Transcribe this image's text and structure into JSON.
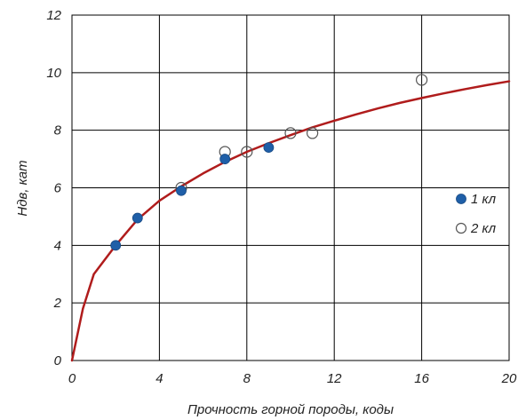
{
  "chart_data": {
    "type": "scatter",
    "title": "",
    "xlabel": "Прочность горной породы, коды",
    "ylabel": "Ндв, кат",
    "xlim": [
      0,
      20
    ],
    "ylim": [
      0,
      12
    ],
    "xticks": [
      0,
      4,
      8,
      12,
      16,
      20
    ],
    "yticks": [
      0,
      2,
      4,
      6,
      8,
      10,
      12
    ],
    "xtick_labels": [
      "0",
      "4",
      "8",
      "12",
      "16",
      "20"
    ],
    "ytick_labels": [
      "0",
      "2",
      "4",
      "6",
      "8",
      "10",
      "12"
    ],
    "grid": true,
    "legend_position": "right",
    "series": [
      {
        "name": "1 кл",
        "marker": "filled-circle",
        "color": "#1f5fa8",
        "points": [
          {
            "x": 2,
            "y": 4.0
          },
          {
            "x": 3,
            "y": 4.95
          },
          {
            "x": 5,
            "y": 5.9
          },
          {
            "x": 7,
            "y": 7.0
          },
          {
            "x": 9,
            "y": 7.4
          }
        ]
      },
      {
        "name": "2 кл",
        "marker": "hollow-circle",
        "color": "#555555",
        "points": [
          {
            "x": 5,
            "y": 6.0
          },
          {
            "x": 7,
            "y": 7.25
          },
          {
            "x": 8,
            "y": 7.25
          },
          {
            "x": 10,
            "y": 7.9
          },
          {
            "x": 11,
            "y": 7.9
          },
          {
            "x": 16,
            "y": 9.75
          }
        ]
      }
    ],
    "trendline": {
      "color": "#b01c1c",
      "points": [
        {
          "x": 0,
          "y": 0.0
        },
        {
          "x": 0.5,
          "y": 1.8
        },
        {
          "x": 1,
          "y": 3.0
        },
        {
          "x": 2,
          "y": 4.0
        },
        {
          "x": 3,
          "y": 4.9
        },
        {
          "x": 4,
          "y": 5.55
        },
        {
          "x": 5,
          "y": 6.05
        },
        {
          "x": 6,
          "y": 6.5
        },
        {
          "x": 7,
          "y": 6.9
        },
        {
          "x": 8,
          "y": 7.25
        },
        {
          "x": 9,
          "y": 7.55
        },
        {
          "x": 10,
          "y": 7.83
        },
        {
          "x": 11,
          "y": 8.1
        },
        {
          "x": 12,
          "y": 8.33
        },
        {
          "x": 13,
          "y": 8.55
        },
        {
          "x": 14,
          "y": 8.76
        },
        {
          "x": 15,
          "y": 8.95
        },
        {
          "x": 16,
          "y": 9.12
        },
        {
          "x": 17,
          "y": 9.28
        },
        {
          "x": 18,
          "y": 9.43
        },
        {
          "x": 19,
          "y": 9.57
        },
        {
          "x": 20,
          "y": 9.7
        }
      ]
    }
  }
}
